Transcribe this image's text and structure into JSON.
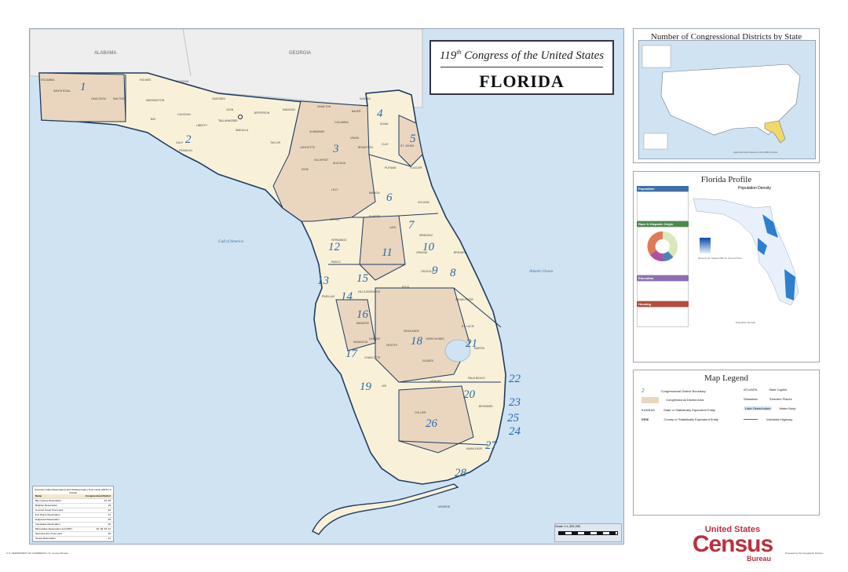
{
  "title": {
    "ordinal": "119",
    "ordinal_suffix": "th",
    "line1_rest": " Congress of the United States",
    "state": "FLORIDA"
  },
  "states": [
    "ALABAMA",
    "GEORGIA"
  ],
  "water_labels": [
    "Gulf of America",
    "Atlantic Ocean"
  ],
  "counties": [
    "ESCAMBIA",
    "SANTA ROSA",
    "OKALOOSA",
    "WALTON",
    "HOLMES",
    "JACKSON",
    "WASHINGTON",
    "BAY",
    "CALHOUN",
    "GADSDEN",
    "LEON",
    "JEFFERSON",
    "MADISON",
    "HAMILTON",
    "GULF",
    "LIBERTY",
    "FRANKLIN",
    "WAKULLA",
    "TAYLOR",
    "SUWANNEE",
    "COLUMBIA",
    "BAKER",
    "NASSAU",
    "DUVAL",
    "UNION",
    "BRADFORD",
    "CLAY",
    "ST. JOHNS",
    "LAFAYETTE",
    "GILCHRIST",
    "ALACHUA",
    "DIXIE",
    "PUTNAM",
    "FLAGLER",
    "LEVY",
    "MARION",
    "VOLUSIA",
    "CITRUS",
    "SUMTER",
    "LAKE",
    "SEMINOLE",
    "HERNANDO",
    "ORANGE",
    "PASCO",
    "OSCEOLA",
    "BREVARD",
    "PINELLAS",
    "HILLS-BOROUGH",
    "POLK",
    "MANATEE",
    "HARDEE",
    "HIGHLANDS",
    "INDIAN RIVER",
    "OKEECHOBEE",
    "ST. LUCIE",
    "SARASOTA",
    "DESOTO",
    "MARTIN",
    "CHARLOTTE",
    "GLADES",
    "LEE",
    "HENDRY",
    "PALM BEACH",
    "COLLIER",
    "BROWARD",
    "MIAMI-DADE",
    "MONROE"
  ],
  "districts": [
    "1",
    "2",
    "3",
    "4",
    "5",
    "6",
    "7",
    "8",
    "9",
    "10",
    "11",
    "12",
    "13",
    "14",
    "15",
    "16",
    "17",
    "18",
    "19",
    "20",
    "21",
    "22",
    "23",
    "24",
    "25",
    "26",
    "27",
    "28"
  ],
  "capital_label": "TALLAHASSEE",
  "aian_table": {
    "title": "American Indian Reservations and Off-Reservation Trust Lands (ORTL) in Florida",
    "headers": [
      "Name",
      "Congressional District"
    ],
    "rows": [
      [
        "Big Cypress Reservation",
        "26, 28"
      ],
      [
        "Brighton Reservation",
        "18"
      ],
      [
        "Coconut Creek Trust Land",
        "23"
      ],
      [
        "Fort Pierce Reservation",
        "21"
      ],
      [
        "Hollywood Reservation",
        "25"
      ],
      [
        "Immokalee Reservation",
        "26"
      ],
      [
        "Miccosukee Reservation and ORTL",
        "26, 28, 25, 24"
      ],
      [
        "Seminole (FL) Trust Land",
        "26"
      ],
      [
        "Tampa Reservation",
        "14"
      ]
    ]
  },
  "scale": {
    "label": "Scale",
    "value": "1:1,325,000"
  },
  "us_inset": {
    "title": "Number of Congressional Districts by State",
    "note": "Apportionment based on the 2020 Census"
  },
  "profile": {
    "title": "Florida Profile",
    "density_title": "Population Density",
    "population_head": "Population",
    "race_head": "Race & Hispanic Origin",
    "education_head": "Education",
    "housing_head": "Housing",
    "density_legend": "Persons per Square Mile by Census Tract",
    "density_legend_sub": "Population Density"
  },
  "legend": {
    "title": "Map Legend",
    "items": [
      {
        "symbol": "2",
        "label": "Congressional District Boundary"
      },
      {
        "symbol": "",
        "label": "Congressional District Area"
      },
      {
        "symbol": "KANSAS",
        "label": "State or Statistically Equivalent Entity"
      },
      {
        "symbol": "ERIE",
        "label": "County or Statistically Equivalent Entity"
      },
      {
        "symbol": "ATLANTA",
        "label": "State Capitol"
      },
      {
        "symbol": "Sebastian",
        "label": "Selected Places"
      },
      {
        "symbol": "Lake Okeechobee",
        "label": "Water Body"
      },
      {
        "symbol": "",
        "label": "Interstate Highway"
      }
    ]
  },
  "census_logo": {
    "top": "United States",
    "mid": "Census",
    "bot": "Bureau"
  },
  "footer": {
    "left": "U.S. DEPARTMENT OF COMMERCE U.S. Census Bureau",
    "right": "Prepared by the Geography Division"
  },
  "colors": {
    "water": "#cfe3f3",
    "neighbor_land": "#eeeeee",
    "district_tan": "#ead6bf",
    "district_cream": "#f8f1d8",
    "district_border": "#1f3b60",
    "district_number": "#2a6aa8",
    "census_red": "#b8323f"
  }
}
